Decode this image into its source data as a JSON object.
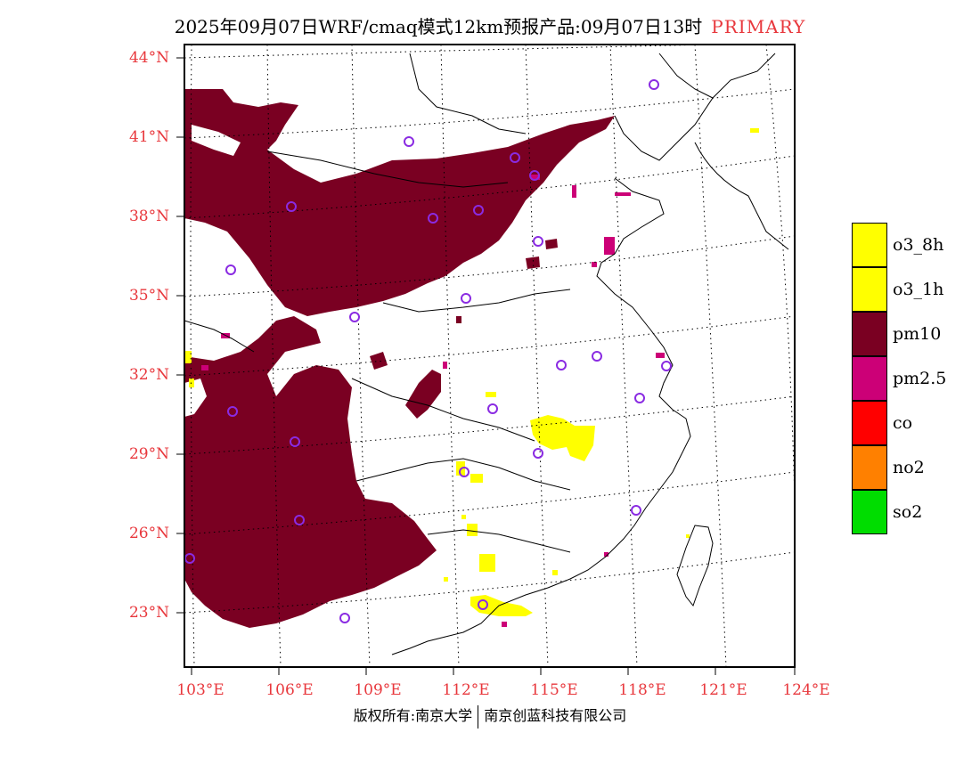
{
  "title": {
    "main": "2025年09月07日WRF/cmaq模式12km预报产品:09月07日13时",
    "tag": "PRIMARY"
  },
  "map": {
    "lat_labels": [
      "44°N",
      "41°N",
      "38°N",
      "35°N",
      "32°N",
      "29°N",
      "26°N",
      "23°N"
    ],
    "lon_labels": [
      "103°E",
      "106°E",
      "109°E",
      "112°E",
      "115°E",
      "118°E",
      "121°E",
      "124°E"
    ]
  },
  "legend": {
    "items": [
      {
        "label": "o3_8h",
        "color": "#ffff00"
      },
      {
        "label": "o3_1h",
        "color": "#ffff00"
      },
      {
        "label": "pm10",
        "color": "#7a0022"
      },
      {
        "label": "pm2.5",
        "color": "#cc0077"
      },
      {
        "label": "co",
        "color": "#ff0000"
      },
      {
        "label": "no2",
        "color": "#ff8000"
      },
      {
        "label": "so2",
        "color": "#00dd00"
      }
    ]
  },
  "colors": {
    "pm10": "#7a0022",
    "pm25": "#cc0077",
    "o3": "#ffff00",
    "station": "#8a2be2",
    "axis_label": "#e8383d"
  },
  "footer": {
    "left": "版权所有:南京大学",
    "right": "南京创蓝科技有限公司"
  }
}
